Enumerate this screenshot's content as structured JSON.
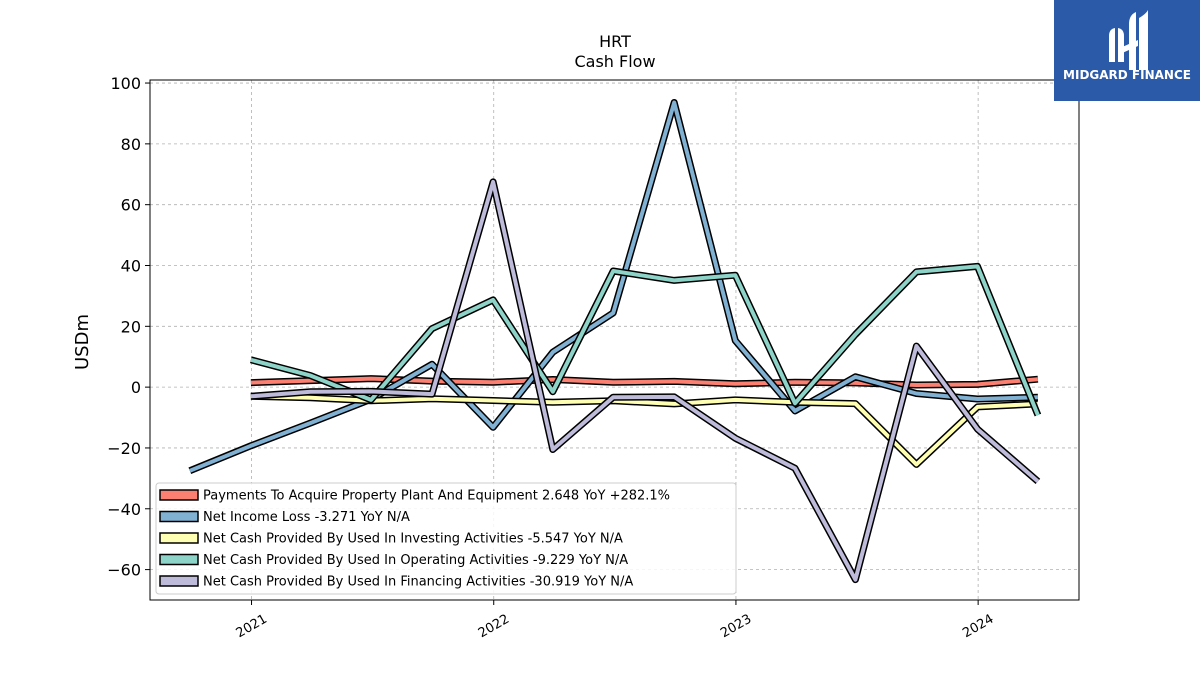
{
  "brand": {
    "name": "MIDGARD FINANCE",
    "color": "#2b5aa8"
  },
  "chart_data": {
    "type": "line",
    "title": "HRT",
    "subtitle": "Cash Flow",
    "xlabel": "",
    "ylabel": "USDm",
    "ylim": [
      -70,
      101
    ],
    "xlim": [
      "2020-08-01",
      "2024-06-01"
    ],
    "yticks": [
      100,
      80,
      60,
      40,
      20,
      0,
      -20,
      -40,
      -60
    ],
    "xticks": [
      "2021",
      "2022",
      "2023",
      "2024"
    ],
    "grid": true,
    "legend": "lower-left",
    "series": [
      {
        "name": "Payments To Acquire Property Plant And Equipment  2.648 YoY +282.1%",
        "color": "#fb8072",
        "x": [
          "2020-12-31",
          "2021-06-30",
          "2021-09-30",
          "2021-12-31",
          "2022-03-31",
          "2022-06-30",
          "2022-09-30",
          "2022-12-31",
          "2023-03-31",
          "2023-06-30",
          "2023-09-30",
          "2023-12-31",
          "2024-03-31"
        ],
        "values": [
          1.5,
          2.8,
          2.0,
          1.6,
          2.5,
          1.6,
          1.9,
          1.1,
          1.6,
          1.4,
          0.7,
          0.9,
          2.6
        ]
      },
      {
        "name": "Net Income Loss  -3.271 YoY N/A",
        "color": "#80b1d3",
        "x": [
          "2020-09-30",
          "2020-12-31",
          "2021-03-31",
          "2021-06-30",
          "2021-09-30",
          "2021-12-31",
          "2022-03-31",
          "2022-06-30",
          "2022-09-30",
          "2022-12-31",
          "2023-03-31",
          "2023-06-30",
          "2023-09-30",
          "2023-12-31",
          "2024-03-31"
        ],
        "values": [
          -27.5,
          -19.3,
          -11.8,
          -4.0,
          7.5,
          -13.2,
          11.5,
          24.4,
          93.6,
          15.3,
          -7.8,
          3.4,
          -2.1,
          -3.9,
          -3.3
        ]
      },
      {
        "name": "Net Cash Provided By Used In Investing Activities  -5.547 YoY N/A",
        "color": "#ffffb3",
        "x": [
          "2020-12-31",
          "2021-03-31",
          "2021-06-30",
          "2021-09-30",
          "2021-12-31",
          "2022-03-31",
          "2022-06-30",
          "2022-09-30",
          "2022-12-31",
          "2023-03-31",
          "2023-06-30",
          "2023-09-30",
          "2023-12-31",
          "2024-03-31"
        ],
        "values": [
          -3.0,
          -3.5,
          -4.5,
          -3.8,
          -4.4,
          -5.0,
          -4.5,
          -5.5,
          -4.2,
          -5.0,
          -5.4,
          -25.4,
          -6.5,
          -5.5
        ]
      },
      {
        "name": "Net Cash Provided By Used In Operating Activities  -9.229 YoY N/A",
        "color": "#8dd3c7",
        "x": [
          "2020-12-31",
          "2021-03-31",
          "2021-06-30",
          "2021-09-30",
          "2021-12-31",
          "2022-03-31",
          "2022-06-30",
          "2022-09-30",
          "2022-12-31",
          "2023-03-31",
          "2023-06-30",
          "2023-09-30",
          "2023-12-31",
          "2024-03-31"
        ],
        "values": [
          9.0,
          3.8,
          -4.2,
          19.2,
          28.7,
          -1.5,
          38.2,
          35.1,
          36.8,
          -5.3,
          17.3,
          37.9,
          39.7,
          -9.2
        ]
      },
      {
        "name": "Net Cash Provided By Used In Financing Activities  -30.919 YoY N/A",
        "color": "#bebada",
        "x": [
          "2020-12-31",
          "2021-03-31",
          "2021-06-30",
          "2021-09-30",
          "2021-12-31",
          "2022-03-31",
          "2022-06-30",
          "2022-09-30",
          "2022-12-31",
          "2023-03-31",
          "2023-06-30",
          "2023-09-30",
          "2023-12-31",
          "2024-03-31"
        ],
        "values": [
          -3.0,
          -1.5,
          -1.4,
          -2.3,
          67.5,
          -20.5,
          -3.3,
          -3.2,
          -16.8,
          -26.7,
          -63.3,
          13.5,
          -13.8,
          -31.0
        ]
      }
    ]
  }
}
